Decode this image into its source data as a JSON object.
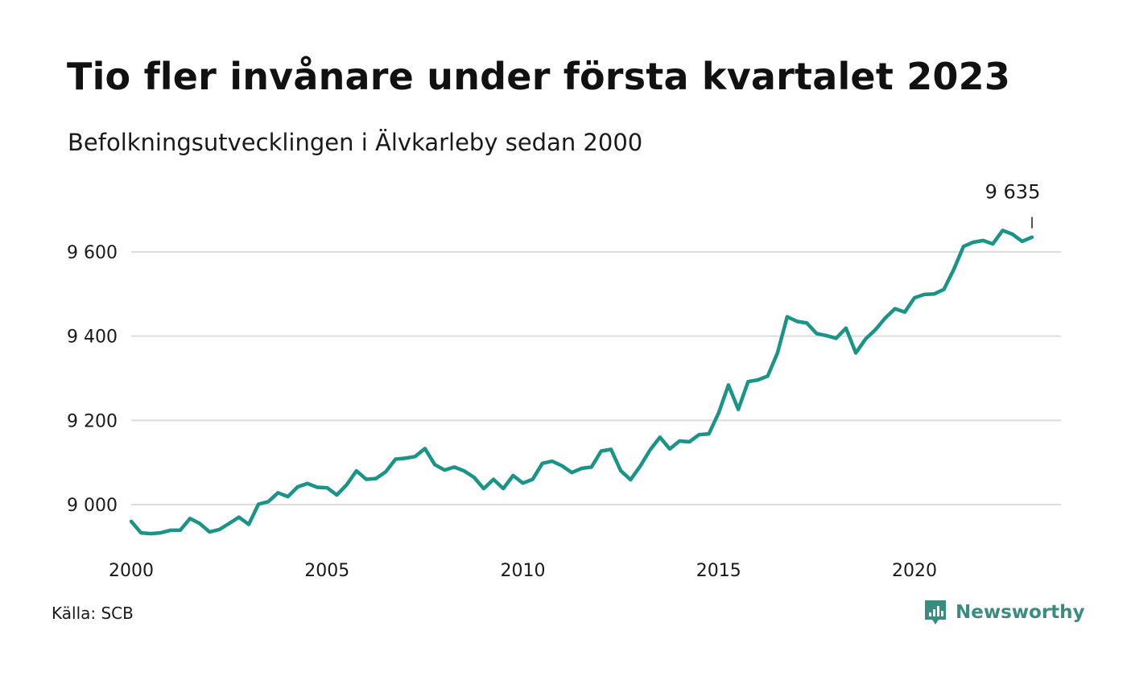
{
  "title": "Tio fler invånare under första kvartalet 2023",
  "subtitle": "Befolkningsutvecklingen i Älvkarleby sedan 2000",
  "source": "Källa: SCB",
  "brand": {
    "name": "Newsworthy",
    "color": "#3b8c80"
  },
  "colors": {
    "line": "#1a9486",
    "grid": "#dcdcdc",
    "text": "#1a1a1a"
  },
  "chart_data": {
    "type": "line",
    "title": "Tio fler invånare under första kvartalet 2023",
    "subtitle": "Befolkningsutvecklingen i Älvkarleby sedan 2000",
    "xlabel": "",
    "ylabel": "",
    "grid": true,
    "xlim": [
      2000,
      2024.5
    ],
    "ylim": [
      8900,
      9700
    ],
    "x_ticks": [
      {
        "value": 2000,
        "label": "2000"
      },
      {
        "value": 2005,
        "label": "2005"
      },
      {
        "value": 2010,
        "label": "2010"
      },
      {
        "value": 2015,
        "label": "2015"
      },
      {
        "value": 2020,
        "label": "2020"
      }
    ],
    "y_ticks": [
      {
        "value": 9000,
        "label": "9 000"
      },
      {
        "value": 9200,
        "label": "9 200"
      },
      {
        "value": 9400,
        "label": "9 400"
      },
      {
        "value": 9600,
        "label": "9 600"
      }
    ],
    "end_label": {
      "text": "9 635",
      "x": 2023.0,
      "y": 9635
    },
    "series": [
      {
        "x": [
          2000.0,
          2000.25,
          2000.5,
          2000.75,
          2001.0,
          2001.25,
          2001.5,
          2001.75,
          2002.0,
          2002.25,
          2002.5,
          2002.75,
          2003.0,
          2003.25,
          2003.5,
          2003.75,
          2004.0,
          2004.25,
          2004.5,
          2004.75,
          2005.0,
          2005.25,
          2005.5,
          2005.75,
          2006.0,
          2006.25,
          2006.5,
          2006.75,
          2007.0,
          2007.25,
          2007.5,
          2007.75,
          2008.0,
          2008.25,
          2008.5,
          2008.75,
          2009.0,
          2009.25,
          2009.5,
          2009.75,
          2010.0,
          2010.25,
          2010.5,
          2010.75,
          2011.0,
          2011.25,
          2011.5,
          2011.75,
          2012.0,
          2012.25,
          2012.5,
          2012.75,
          2013.0,
          2013.25,
          2013.5,
          2013.75,
          2014.0,
          2014.25,
          2014.5,
          2014.75,
          2015.0,
          2015.25,
          2015.5,
          2015.75,
          2016.0,
          2016.25,
          2016.5,
          2016.75,
          2017.0,
          2017.25,
          2017.5,
          2017.75,
          2018.0,
          2018.25,
          2018.5,
          2018.75,
          2019.0,
          2019.25,
          2019.5,
          2019.75,
          2020.0,
          2020.25,
          2020.5,
          2020.75,
          2021.0,
          2021.25,
          2021.5,
          2021.75,
          2022.0,
          2022.25,
          2022.5,
          2022.75,
          2023.0
        ],
        "values": [
          8960,
          8933,
          8931,
          8933,
          8939,
          8939,
          8967,
          8955,
          8935,
          8941,
          8955,
          8970,
          8953,
          9001,
          9007,
          9028,
          9019,
          9042,
          9050,
          9041,
          9040,
          9023,
          9047,
          9080,
          9060,
          9062,
          9078,
          9108,
          9110,
          9114,
          9133,
          9095,
          9082,
          9089,
          9080,
          9065,
          9038,
          9060,
          9038,
          9069,
          9051,
          9060,
          9098,
          9103,
          9092,
          9076,
          9086,
          9089,
          9127,
          9131,
          9080,
          9059,
          9092,
          9130,
          9160,
          9132,
          9151,
          9149,
          9166,
          9168,
          9218,
          9284,
          9226,
          9292,
          9296,
          9305,
          9360,
          9446,
          9435,
          9431,
          9406,
          9401,
          9395,
          9419,
          9360,
          9393,
          9415,
          9443,
          9465,
          9457,
          9491,
          9499,
          9500,
          9511,
          9558,
          9613,
          9623,
          9627,
          9619,
          9651,
          9642,
          9625,
          9635
        ]
      }
    ]
  }
}
